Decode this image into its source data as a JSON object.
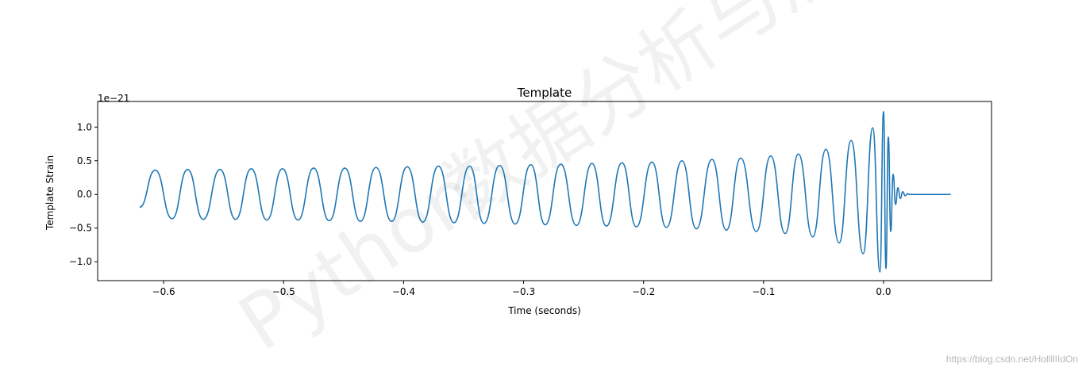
{
  "chart_data": {
    "type": "line",
    "title": "Template",
    "xlabel": "Time (seconds)",
    "ylabel": "Template Strain",
    "offset_text": "1e−21",
    "xlim": [
      -0.655,
      0.09
    ],
    "ylim": [
      -1.28,
      1.38
    ],
    "xticks": [
      {
        "value": -0.6,
        "label": "−0.6"
      },
      {
        "value": -0.5,
        "label": "−0.5"
      },
      {
        "value": -0.4,
        "label": "−0.4"
      },
      {
        "value": -0.3,
        "label": "−0.3"
      },
      {
        "value": -0.2,
        "label": "−0.2"
      },
      {
        "value": -0.1,
        "label": "−0.1"
      },
      {
        "value": 0.0,
        "label": "0.0"
      }
    ],
    "yticks": [
      {
        "value": 1.0,
        "label": "1.0"
      },
      {
        "value": 0.5,
        "label": "0.5"
      },
      {
        "value": 0.0,
        "label": "0.0"
      },
      {
        "value": -0.5,
        "label": "−0.5"
      },
      {
        "value": -1.0,
        "label": "−1.0"
      }
    ],
    "grid": false,
    "series": [
      {
        "color": "#1f77b4",
        "x": [
          -0.62,
          -0.607,
          -0.593,
          -0.58,
          -0.567,
          -0.553,
          -0.54,
          -0.527,
          -0.514,
          -0.501,
          -0.488,
          -0.475,
          -0.462,
          -0.449,
          -0.436,
          -0.423,
          -0.41,
          -0.397,
          -0.384,
          -0.371,
          -0.358,
          -0.345,
          -0.333,
          -0.32,
          -0.307,
          -0.294,
          -0.282,
          -0.269,
          -0.256,
          -0.243,
          -0.231,
          -0.218,
          -0.206,
          -0.193,
          -0.181,
          -0.168,
          -0.156,
          -0.143,
          -0.131,
          -0.119,
          -0.106,
          -0.094,
          -0.082,
          -0.071,
          -0.059,
          -0.048,
          -0.037,
          -0.027,
          -0.017,
          -0.009,
          -0.003,
          0.0,
          0.002,
          0.004,
          0.006,
          0.008,
          0.01,
          0.012,
          0.014,
          0.016,
          0.018,
          0.02,
          0.022,
          0.03,
          0.056
        ],
        "y": [
          -0.19,
          0.36,
          -0.36,
          0.37,
          -0.37,
          0.37,
          -0.37,
          0.38,
          -0.38,
          0.38,
          -0.38,
          0.39,
          -0.39,
          0.39,
          -0.4,
          0.4,
          -0.4,
          0.41,
          -0.41,
          0.42,
          -0.42,
          0.42,
          -0.43,
          0.43,
          -0.44,
          0.44,
          -0.45,
          0.45,
          -0.46,
          0.46,
          -0.47,
          0.47,
          -0.48,
          0.48,
          -0.49,
          0.5,
          -0.51,
          0.52,
          -0.53,
          0.54,
          -0.55,
          0.57,
          -0.58,
          0.6,
          -0.63,
          0.67,
          -0.72,
          0.8,
          -0.88,
          0.99,
          -1.15,
          1.23,
          -1.1,
          0.85,
          -0.55,
          0.3,
          -0.15,
          0.1,
          -0.06,
          0.04,
          -0.02,
          0.01,
          0.0,
          0.0,
          0.0
        ]
      }
    ]
  },
  "watermark": {
    "cn_text": "数据分析与展示",
    "latin_text": "Python",
    "credit": "https://blog.csdn.net/HollllIIdOn"
  }
}
